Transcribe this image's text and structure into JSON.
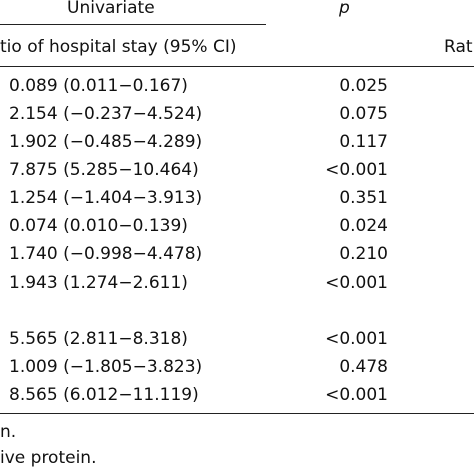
{
  "header": {
    "univariate_label": "Univariate",
    "p_label": "p",
    "ratio_label": "tio of hospital stay (95% CI)",
    "right_ratio_label": "Rat"
  },
  "rows": [
    {
      "ratio": "0.089 (0.011−0.167)",
      "p": "0.025"
    },
    {
      "ratio": "2.154 (−0.237−4.524)",
      "p": "0.075"
    },
    {
      "ratio": "1.902 (−0.485−4.289)",
      "p": "0.117"
    },
    {
      "ratio": "7.875 (5.285−10.464)",
      "p": "<0.001"
    },
    {
      "ratio": "1.254 (−1.404−3.913)",
      "p": "0.351"
    },
    {
      "ratio": "0.074 (0.010−0.139)",
      "p": "0.024"
    },
    {
      "ratio": "1.740 (−0.998−4.478)",
      "p": "0.210"
    },
    {
      "ratio": "1.943 (1.274−2.611)",
      "p": "<0.001"
    },
    {
      "ratio": "5.565 (2.811−8.318)",
      "p": "<0.001"
    },
    {
      "ratio": "1.009 (−1.805−3.823)",
      "p": "0.478"
    },
    {
      "ratio": "8.565 (6.012−11.119)",
      "p": "<0.001"
    }
  ],
  "footnotes": [
    "n.",
    "ive protein."
  ]
}
